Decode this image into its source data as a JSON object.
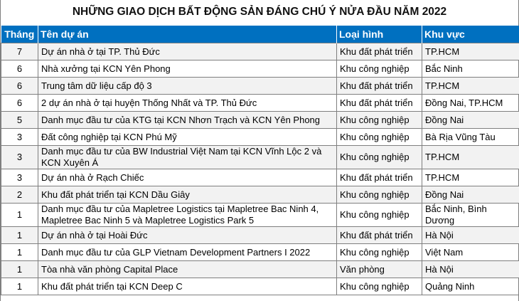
{
  "title": "NHỮNG GIAO DỊCH BẤT ĐỘNG SẢN ĐÁNG CHÚ Ý NỬA ĐẦU NĂM 2022",
  "header_color": "#0070c0",
  "columns": [
    "Tháng",
    "Tên dự án",
    "Loại hình",
    "Khu vực"
  ],
  "rows": [
    [
      "7",
      "Dự án nhà ở tại TP. Thủ Đức",
      "Khu đất phát triển",
      "TP.HCM"
    ],
    [
      "6",
      "Nhà xưởng tại KCN Yên Phong",
      "Khu công nghiệp",
      "Bắc Ninh"
    ],
    [
      "6",
      "Trung tâm dữ liệu cấp độ 3",
      "Khu đất phát triển",
      "TP.HCM"
    ],
    [
      "6",
      "2 dự án nhà ở tại huyện Thống Nhất và TP. Thủ Đức",
      "Khu đất phát triển",
      "Đồng Nai, TP.HCM"
    ],
    [
      "5",
      "Danh mục đầu tư của KTG tại KCN Nhơn Trạch và KCN Yên Phong",
      "Khu công nghiệp",
      "Đồng Nai"
    ],
    [
      "3",
      "Đất công nghiệp tại KCN Phú Mỹ",
      "Khu công nghiệp",
      "Bà Rịa Vũng Tàu"
    ],
    [
      "3",
      "Danh mục đầu tư của BW Industrial Việt Nam tại KCN Vĩnh Lộc 2 và KCN Xuyên Á",
      "Khu công nghiệp",
      "TP.HCM"
    ],
    [
      "3",
      "Dự án nhà ở Rạch Chiếc",
      "Khu đất phát triển",
      "TP.HCM"
    ],
    [
      "2",
      "Khu đất phát triển tại KCN Dầu Giây",
      "Khu công nghiệp",
      "Đồng Nai"
    ],
    [
      "1",
      "Danh mục đầu tư của Mapletree Logistics tại Mapletree Bac Ninh 4, Mapletree Bac Ninh 5 và Mapletree Logistics Park 5",
      "Khu công nghiệp",
      "Bắc Ninh, Bình Dương"
    ],
    [
      "1",
      "Dự án nhà ở tại Hoài Đức",
      "Khu đất phát triển",
      "Hà Nội"
    ],
    [
      "1",
      "Danh mục đầu tư của GLP Vietnam Development Partners I 2022",
      "Khu công nghiệp",
      "Việt Nam"
    ],
    [
      "1",
      "Tòa nhà văn phòng Capital Place",
      "Văn phòng",
      "Hà Nội"
    ],
    [
      "1",
      "Khu đất phát triển tại KCN Deep C",
      "Khu công nghiệp",
      "Quảng Ninh"
    ]
  ]
}
